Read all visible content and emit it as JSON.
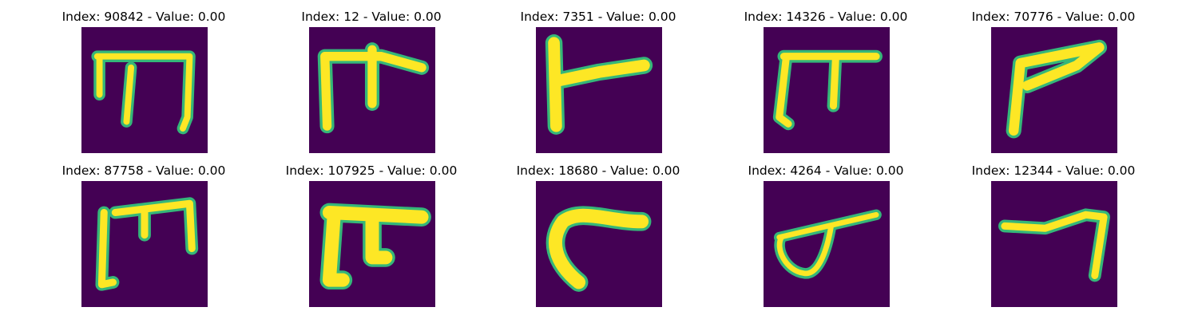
{
  "colors": {
    "background": "#440154",
    "glyph": "#fde725",
    "edge": "#35b779"
  },
  "panels": [
    {
      "title": "Index: 90842 - Value: 0.00",
      "icon": "handwritten-glyph-m-shape"
    },
    {
      "title": "Index: 12 - Value: 0.00",
      "icon": "handwritten-glyph-table-shape"
    },
    {
      "title": "Index: 7351 - Value: 0.00",
      "icon": "handwritten-glyph-t-bar"
    },
    {
      "title": "Index: 14326 - Value: 0.00",
      "icon": "handwritten-glyph-pi-shape"
    },
    {
      "title": "Index: 70776 - Value: 0.00",
      "icon": "handwritten-glyph-slanted-bar"
    },
    {
      "title": "Index: 87758 - Value: 0.00",
      "icon": "handwritten-glyph-bracket-m"
    },
    {
      "title": "Index: 107925 - Value: 0.00",
      "icon": "handwritten-glyph-thick-pi"
    },
    {
      "title": "Index: 18680 - Value: 0.00",
      "icon": "handwritten-glyph-curved-hook"
    },
    {
      "title": "Index: 4264 - Value: 0.00",
      "icon": "handwritten-glyph-loop"
    },
    {
      "title": "Index: 12344 - Value: 0.00",
      "icon": "handwritten-glyph-seven-shape"
    }
  ]
}
